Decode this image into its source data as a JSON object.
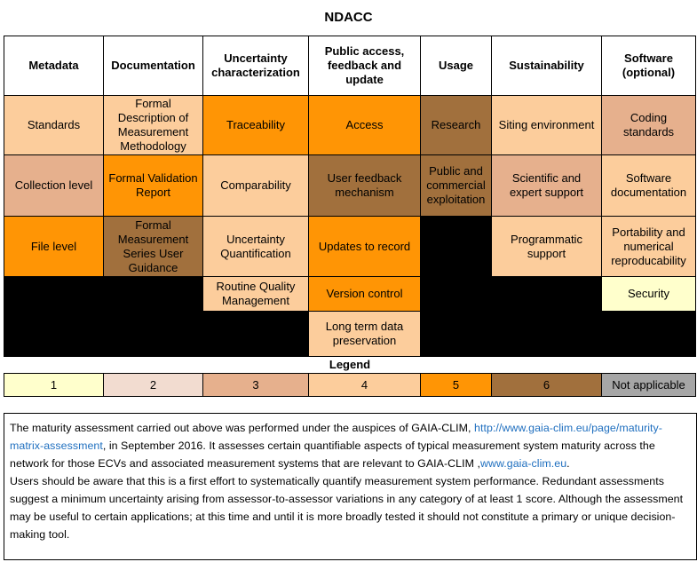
{
  "title": "NDACC",
  "headers": [
    "Metadata",
    "Documentation",
    "Uncertainty characterization",
    "Public access, feedback and update",
    "Usage",
    "Sustainability",
    "Software (optional)"
  ],
  "rows": {
    "r1": [
      "Standards",
      "Formal Description of Measurement Methodology",
      "Traceability",
      "Access",
      "Research",
      "Siting environment",
      "Coding standards"
    ],
    "r2": [
      "Collection level",
      "Formal Validation Report",
      "Comparability",
      "User feedback mechanism",
      "Public and commercial exploitation",
      "Scientific and expert support",
      "Software documentation"
    ],
    "r3": [
      "File level",
      "Formal Measurement Series User Guidance",
      "Uncertainty Quantification",
      "Updates to record",
      "Programmatic support",
      "Portability and numerical reproducability"
    ],
    "r4": [
      "Routine Quality Management",
      "Version control",
      "Security"
    ],
    "r5": [
      "Long term data preservation"
    ]
  },
  "legend": {
    "title": "Legend",
    "items": [
      "1",
      "2",
      "3",
      "4",
      "5",
      "6",
      "Not applicable"
    ]
  },
  "colors": {
    "level_1": "#ffffcc",
    "level_2": "#f2dcd0",
    "level_3": "#e6b08d",
    "level_4": "#fccd9c",
    "level_5": "#ff9505",
    "level_6": "#a1703d",
    "not_applicable": "#a6a6a6",
    "empty": "#000000"
  },
  "note": {
    "p1_a": "The  maturity assessment carried out above was performed under the auspices of GAIA-CLIM,  ",
    "link1": "http://www.gaia-clim.eu/page/maturity-matrix-assessment",
    "p1_b": ", in September 2016. It assesses certain quantifiable aspects of typical measurement system maturity across the network for those ECVs and associated measurement systems that are relevant to GAIA-CLIM ,",
    "link2": "www.gaia-clim.eu",
    "p1_c": ".",
    "p2": "Users should be aware that this is a first effort to systematically quantify measurement system performance. Redundant assessments suggest a minimum uncertainty arising from assessor-to-assessor variations in any category of at least 1 score. Although the assessment may be useful to certain applications; at this time and until it is more broadly tested it should not constitute a primary or unique decision-making tool."
  }
}
